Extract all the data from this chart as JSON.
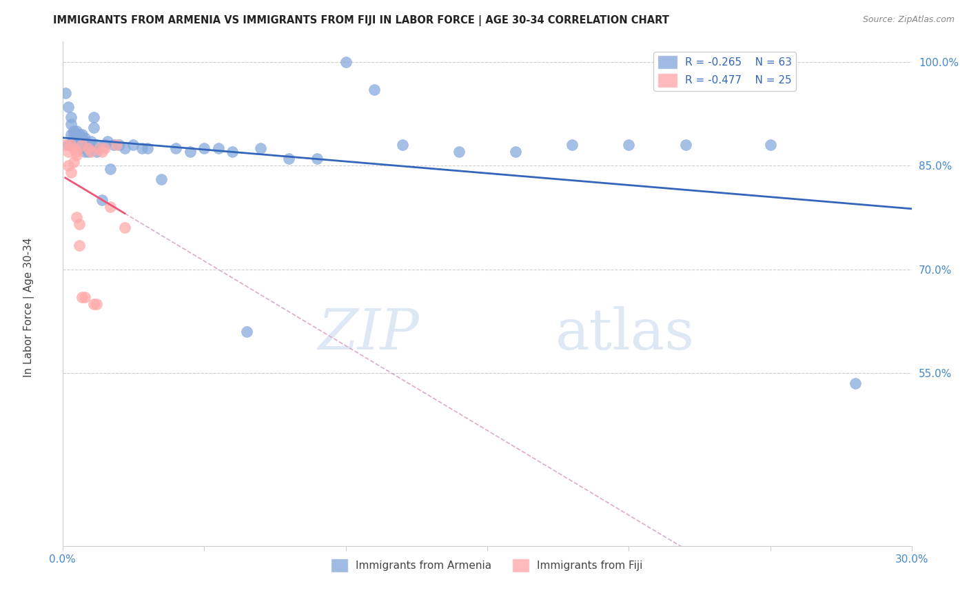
{
  "title": "IMMIGRANTS FROM ARMENIA VS IMMIGRANTS FROM FIJI IN LABOR FORCE | AGE 30-34 CORRELATION CHART",
  "source": "Source: ZipAtlas.com",
  "ylabel": "In Labor Force | Age 30-34",
  "x_min": 0.0,
  "x_max": 0.3,
  "y_min": 0.3,
  "y_max": 1.03,
  "legend_r1": "R = -0.265",
  "legend_n1": "N = 63",
  "legend_r2": "R = -0.477",
  "legend_n2": "N = 25",
  "color_armenia": "#88AADD",
  "color_fiji": "#FFAAAA",
  "trendline_armenia_color": "#3366BB",
  "trendline_fiji_color": "#EE5577",
  "trendline_fiji_dashed_color": "#DDAACC",
  "watermark_zip": "ZIP",
  "watermark_atlas": "atlas",
  "armenia_x": [
    0.001,
    0.002,
    0.002,
    0.003,
    0.003,
    0.003,
    0.004,
    0.004,
    0.004,
    0.005,
    0.005,
    0.005,
    0.005,
    0.006,
    0.006,
    0.006,
    0.006,
    0.007,
    0.007,
    0.007,
    0.007,
    0.008,
    0.008,
    0.008,
    0.009,
    0.009,
    0.01,
    0.01,
    0.011,
    0.011,
    0.012,
    0.012,
    0.013,
    0.014,
    0.015,
    0.016,
    0.017,
    0.018,
    0.02,
    0.022,
    0.025,
    0.028,
    0.03,
    0.035,
    0.04,
    0.045,
    0.05,
    0.055,
    0.06,
    0.065,
    0.07,
    0.08,
    0.09,
    0.1,
    0.11,
    0.12,
    0.14,
    0.16,
    0.18,
    0.2,
    0.22,
    0.25,
    0.28
  ],
  "armenia_y": [
    0.955,
    0.935,
    0.88,
    0.92,
    0.91,
    0.895,
    0.9,
    0.895,
    0.885,
    0.9,
    0.895,
    0.885,
    0.88,
    0.895,
    0.89,
    0.885,
    0.875,
    0.895,
    0.89,
    0.88,
    0.875,
    0.89,
    0.885,
    0.87,
    0.88,
    0.87,
    0.885,
    0.88,
    0.92,
    0.905,
    0.88,
    0.87,
    0.875,
    0.8,
    0.88,
    0.885,
    0.845,
    0.88,
    0.88,
    0.875,
    0.88,
    0.875,
    0.875,
    0.83,
    0.875,
    0.87,
    0.875,
    0.875,
    0.87,
    0.61,
    0.875,
    0.86,
    0.86,
    1.0,
    0.96,
    0.88,
    0.87,
    0.87,
    0.88,
    0.88,
    0.88,
    0.88,
    0.535
  ],
  "fiji_x": [
    0.001,
    0.002,
    0.002,
    0.003,
    0.003,
    0.004,
    0.004,
    0.005,
    0.005,
    0.005,
    0.006,
    0.006,
    0.007,
    0.007,
    0.008,
    0.009,
    0.01,
    0.011,
    0.012,
    0.013,
    0.014,
    0.015,
    0.017,
    0.019,
    0.022
  ],
  "fiji_y": [
    0.88,
    0.87,
    0.85,
    0.88,
    0.84,
    0.875,
    0.855,
    0.87,
    0.865,
    0.775,
    0.765,
    0.735,
    0.88,
    0.66,
    0.66,
    0.875,
    0.87,
    0.65,
    0.65,
    0.875,
    0.87,
    0.875,
    0.79,
    0.88,
    0.76
  ]
}
